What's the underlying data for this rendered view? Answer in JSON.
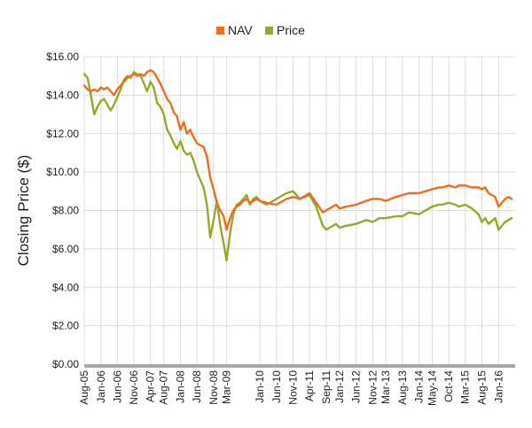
{
  "chart_data": {
    "type": "line",
    "title": "",
    "xlabel": "",
    "ylabel": "Closing Price ($)",
    "ylim": [
      0,
      16
    ],
    "yticks": [
      "$0.00",
      "$2.00",
      "$4.00",
      "$6.00",
      "$8.00",
      "$10.00",
      "$12.00",
      "$14.00",
      "$16.00"
    ],
    "xticks": [
      "Aug-05",
      "Jan-06",
      "Jun-06",
      "Nov-06",
      "Apr-07",
      "Aug-07",
      "Jan-08",
      "Jun-08",
      "Nov-08",
      "Mar-09",
      "Jan-10",
      "Jun-10",
      "Nov-10",
      "Apr-11",
      "Sep-11",
      "Jan-12",
      "Jun-12",
      "Nov-12",
      "Mar-13",
      "Aug-13",
      "Jan-14",
      "May-14",
      "Oct-14",
      "Mar-15",
      "Aug-15",
      "Jan-16"
    ],
    "grid": true,
    "legend_position": "top-center",
    "series": [
      {
        "name": "NAV",
        "color": "#f26b21",
        "x": [
          "2005-08",
          "2005-09",
          "2005-10",
          "2005-11",
          "2005-12",
          "2006-01",
          "2006-02",
          "2006-03",
          "2006-04",
          "2006-05",
          "2006-06",
          "2006-07",
          "2006-08",
          "2006-09",
          "2006-10",
          "2006-11",
          "2006-12",
          "2007-01",
          "2007-02",
          "2007-03",
          "2007-04",
          "2007-05",
          "2007-06",
          "2007-07",
          "2007-08",
          "2007-09",
          "2007-10",
          "2007-11",
          "2007-12",
          "2008-01",
          "2008-02",
          "2008-03",
          "2008-04",
          "2008-05",
          "2008-06",
          "2008-07",
          "2008-08",
          "2008-09",
          "2008-10",
          "2008-11",
          "2008-12",
          "2009-01",
          "2009-02",
          "2009-03",
          "2009-04",
          "2009-05",
          "2009-06",
          "2009-07",
          "2009-08",
          "2009-09",
          "2009-10",
          "2009-11",
          "2009-12",
          "2010-01",
          "2010-03",
          "2010-06",
          "2010-09",
          "2010-11",
          "2011-01",
          "2011-04",
          "2011-06",
          "2011-08",
          "2011-09",
          "2011-10",
          "2011-12",
          "2012-01",
          "2012-03",
          "2012-06",
          "2012-09",
          "2012-11",
          "2013-01",
          "2013-03",
          "2013-06",
          "2013-08",
          "2013-10",
          "2014-01",
          "2014-03",
          "2014-05",
          "2014-07",
          "2014-08",
          "2014-10",
          "2014-12",
          "2015-01",
          "2015-03",
          "2015-05",
          "2015-07",
          "2015-08",
          "2015-09",
          "2015-10",
          "2015-12",
          "2016-01",
          "2016-02",
          "2016-03",
          "2016-04",
          "2016-05"
        ],
        "values": [
          14.5,
          14.3,
          14.2,
          14.3,
          14.2,
          14.4,
          14.3,
          14.4,
          14.2,
          14.0,
          14.3,
          14.5,
          14.7,
          14.9,
          15.0,
          15.1,
          15.0,
          15.1,
          15.0,
          15.2,
          15.3,
          15.2,
          14.9,
          14.6,
          14.2,
          13.8,
          13.6,
          13.1,
          12.9,
          12.2,
          12.6,
          12.0,
          12.2,
          11.8,
          11.5,
          11.4,
          11.3,
          10.8,
          9.7,
          9.1,
          8.4,
          8.0,
          7.7,
          7.0,
          7.6,
          8.0,
          8.2,
          8.3,
          8.5,
          8.6,
          8.4,
          8.5,
          8.6,
          8.5,
          8.4,
          8.3,
          8.6,
          8.7,
          8.6,
          8.9,
          8.4,
          7.9,
          8.0,
          8.1,
          8.3,
          8.1,
          8.2,
          8.3,
          8.5,
          8.6,
          8.6,
          8.5,
          8.7,
          8.8,
          8.9,
          8.9,
          9.0,
          9.1,
          9.2,
          9.2,
          9.3,
          9.2,
          9.3,
          9.3,
          9.2,
          9.2,
          9.1,
          9.2,
          8.9,
          8.7,
          8.2,
          8.4,
          8.6,
          8.7,
          8.6
        ]
      },
      {
        "name": "Price",
        "color": "#99a82a",
        "x": [
          "2005-08",
          "2005-09",
          "2005-10",
          "2005-11",
          "2005-12",
          "2006-01",
          "2006-02",
          "2006-03",
          "2006-04",
          "2006-05",
          "2006-06",
          "2006-07",
          "2006-08",
          "2006-09",
          "2006-10",
          "2006-11",
          "2006-12",
          "2007-01",
          "2007-02",
          "2007-03",
          "2007-04",
          "2007-05",
          "2007-06",
          "2007-07",
          "2007-08",
          "2007-09",
          "2007-10",
          "2007-11",
          "2007-12",
          "2008-01",
          "2008-02",
          "2008-03",
          "2008-04",
          "2008-05",
          "2008-06",
          "2008-07",
          "2008-08",
          "2008-09",
          "2008-10",
          "2008-11",
          "2008-12",
          "2009-01",
          "2009-02",
          "2009-03",
          "2009-04",
          "2009-05",
          "2009-06",
          "2009-07",
          "2009-08",
          "2009-09",
          "2009-10",
          "2009-11",
          "2009-12",
          "2010-01",
          "2010-03",
          "2010-06",
          "2010-09",
          "2010-11",
          "2011-01",
          "2011-04",
          "2011-06",
          "2011-08",
          "2011-09",
          "2011-10",
          "2011-12",
          "2012-01",
          "2012-03",
          "2012-06",
          "2012-09",
          "2012-11",
          "2013-01",
          "2013-03",
          "2013-06",
          "2013-08",
          "2013-10",
          "2014-01",
          "2014-03",
          "2014-05",
          "2014-07",
          "2014-08",
          "2014-10",
          "2014-12",
          "2015-01",
          "2015-03",
          "2015-05",
          "2015-07",
          "2015-08",
          "2015-09",
          "2015-10",
          "2015-12",
          "2016-01",
          "2016-02",
          "2016-03",
          "2016-04",
          "2016-05"
        ],
        "values": [
          15.1,
          14.9,
          14.0,
          13.0,
          13.4,
          13.7,
          13.8,
          13.5,
          13.2,
          13.5,
          13.9,
          14.3,
          14.8,
          15.0,
          14.9,
          15.2,
          15.1,
          15.0,
          14.6,
          14.2,
          14.7,
          14.4,
          13.6,
          13.4,
          13.0,
          12.2,
          11.9,
          11.5,
          11.2,
          11.6,
          11.1,
          10.9,
          11.0,
          10.6,
          10.0,
          9.6,
          9.2,
          8.3,
          6.6,
          7.5,
          8.5,
          7.2,
          6.3,
          5.4,
          6.8,
          7.8,
          8.3,
          8.4,
          8.6,
          8.8,
          8.3,
          8.6,
          8.7,
          8.5,
          8.3,
          8.6,
          8.9,
          9.0,
          8.6,
          8.8,
          8.2,
          7.2,
          7.0,
          7.1,
          7.3,
          7.1,
          7.2,
          7.3,
          7.5,
          7.4,
          7.6,
          7.6,
          7.7,
          7.7,
          7.9,
          7.8,
          8.0,
          8.2,
          8.3,
          8.3,
          8.4,
          8.3,
          8.2,
          8.3,
          8.1,
          7.8,
          7.4,
          7.6,
          7.3,
          7.6,
          7.0,
          7.2,
          7.4,
          7.5,
          7.6
        ]
      }
    ]
  }
}
